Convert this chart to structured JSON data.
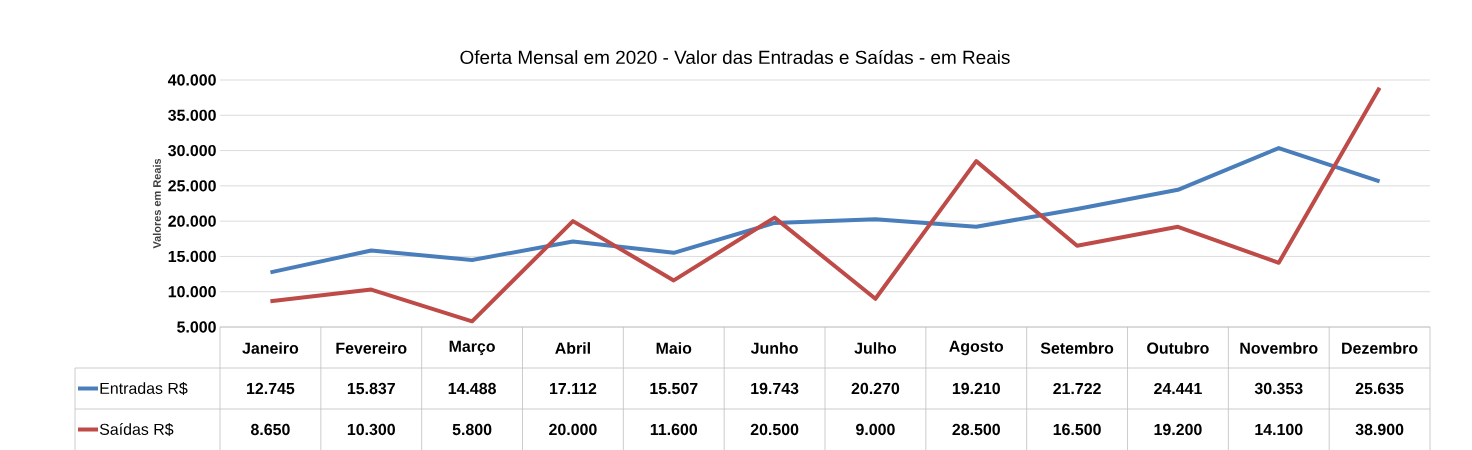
{
  "chart_data": {
    "type": "line",
    "title": "Oferta Mensal em 2020 - Valor das Entradas e Saídas - em Reais",
    "ylabel": "Valores em Reais",
    "categories": [
      "Janeiro",
      "Fevereiro",
      "Março",
      "Abril",
      "Maio",
      "Junho",
      "Julho",
      "Agosto",
      "Setembro",
      "Outubro",
      "Novembro",
      "Dezembro"
    ],
    "series": [
      {
        "name": "Entradas R$",
        "color": "#4a7ebb",
        "values": [
          12745,
          15837,
          14488,
          17112,
          15507,
          19743,
          20270,
          19210,
          21722,
          24441,
          30353,
          25635
        ],
        "value_labels": [
          "12.745",
          "15.837",
          "14.488",
          "17.112",
          "15.507",
          "19.743",
          "20.270",
          "19.210",
          "21.722",
          "24.441",
          "30.353",
          "25.635"
        ]
      },
      {
        "name": "Saídas R$",
        "color": "#be4b48",
        "values": [
          8650,
          10300,
          5800,
          20000,
          11600,
          20500,
          9000,
          28500,
          16500,
          19200,
          14100,
          38900
        ],
        "value_labels": [
          "8.650",
          "10.300",
          "5.800",
          "20.000",
          "11.600",
          "20.500",
          "9.000",
          "28.500",
          "16.500",
          "19.200",
          "14.100",
          "38.900"
        ]
      }
    ],
    "ylim": [
      5000,
      40000
    ],
    "yticks": [
      {
        "value": 5000,
        "label": "5.000"
      },
      {
        "value": 10000,
        "label": "10.000"
      },
      {
        "value": 15000,
        "label": "15.000"
      },
      {
        "value": 20000,
        "label": "20.000"
      },
      {
        "value": 25000,
        "label": "25.000"
      },
      {
        "value": 30000,
        "label": "30.000"
      },
      {
        "value": 35000,
        "label": "35.000"
      },
      {
        "value": 40000,
        "label": "40.000"
      }
    ],
    "grid": "y",
    "legend": "bottom left",
    "marker": "none",
    "line_style": "solid"
  }
}
